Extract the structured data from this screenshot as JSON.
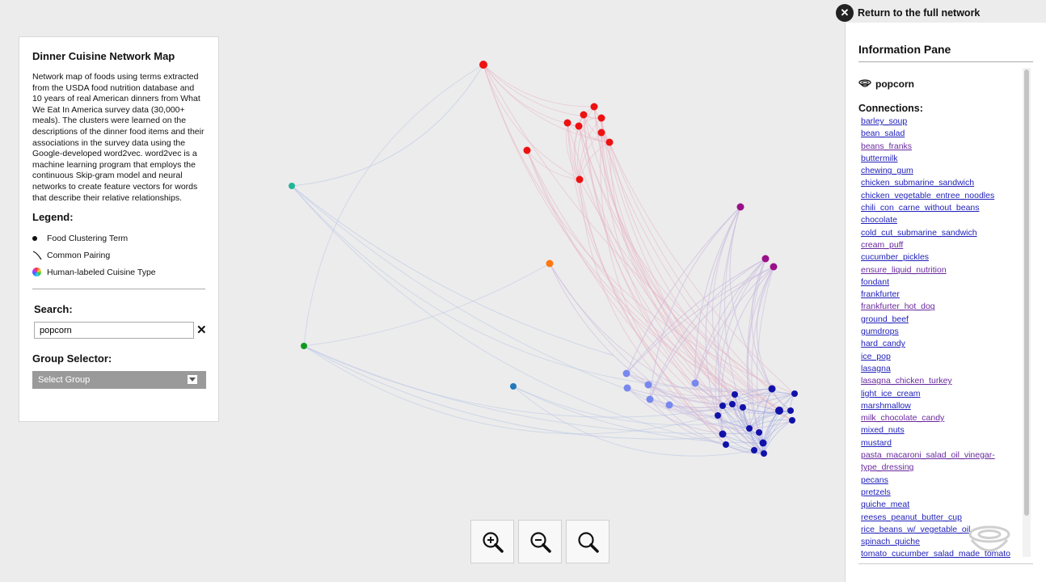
{
  "left_panel": {
    "title": "Dinner Cuisine Network Map",
    "description": "Network map of foods using terms extracted from the USDA food nutrition database and 10 years of real American dinners from What We Eat In America survey data (30,000+ meals). The clusters were learned on the descriptions of the dinner food items and their associations in the survey data using the Google-developed word2vec. word2vec is a machine learning program that employs the continuous Skip-gram model and neural networks to create feature vectors for words that describe their relative relationships.",
    "legend_title": "Legend:",
    "legend": [
      {
        "icon": "dot-icon",
        "label": "Food Clustering Term"
      },
      {
        "icon": "arc-icon",
        "label": "Common Pairing"
      },
      {
        "icon": "color-wheel-icon",
        "label": "Human-labeled Cuisine Type"
      }
    ],
    "search_label": "Search:",
    "search_value": "popcorn",
    "clear_symbol": "✕",
    "group_label": "Group Selector:",
    "group_value": "Select Group"
  },
  "return_button": {
    "symbol": "✕",
    "label": "Return to the full network"
  },
  "info_pane": {
    "title": "Information Pane",
    "node_name": "popcorn",
    "connections_title": "Connections:",
    "connections": [
      {
        "label": "barley_soup",
        "visited": false
      },
      {
        "label": "bean_salad",
        "visited": false
      },
      {
        "label": "beans_franks",
        "visited": true
      },
      {
        "label": "buttermilk",
        "visited": false
      },
      {
        "label": "chewing_gum",
        "visited": false
      },
      {
        "label": "chicken_submarine_sandwich",
        "visited": false
      },
      {
        "label": "chicken_vegetable_entree_noodles",
        "visited": false
      },
      {
        "label": "chili_con_carne_without_beans",
        "visited": false
      },
      {
        "label": "chocolate",
        "visited": false
      },
      {
        "label": "cold_cut_submarine_sandwich",
        "visited": false
      },
      {
        "label": "cream_puff",
        "visited": true
      },
      {
        "label": "cucumber_pickles",
        "visited": false
      },
      {
        "label": "ensure_liquid_nutrition",
        "visited": true
      },
      {
        "label": "fondant",
        "visited": false
      },
      {
        "label": "frankfurter",
        "visited": false
      },
      {
        "label": "frankfurter_hot_dog",
        "visited": true
      },
      {
        "label": "ground_beef",
        "visited": false
      },
      {
        "label": "gumdrops",
        "visited": false
      },
      {
        "label": "hard_candy",
        "visited": false
      },
      {
        "label": "ice_pop",
        "visited": false
      },
      {
        "label": "lasagna",
        "visited": false
      },
      {
        "label": "lasagna_chicken_turkey",
        "visited": true
      },
      {
        "label": "light_ice_cream",
        "visited": false
      },
      {
        "label": "marshmallow",
        "visited": false
      },
      {
        "label": "milk_chocolate_candy",
        "visited": true
      },
      {
        "label": "mixed_nuts",
        "visited": false
      },
      {
        "label": "mustard",
        "visited": false
      },
      {
        "label": "pasta_macaroni_salad_oil_vinegar-type_dressing",
        "visited": true
      },
      {
        "label": "pecans",
        "visited": false
      },
      {
        "label": "pretzels",
        "visited": false
      },
      {
        "label": "quiche_meat",
        "visited": false
      },
      {
        "label": "reeses_peanut_butter_cup",
        "visited": false
      },
      {
        "label": "rice_beans_w/_vegetable_oil",
        "visited": false
      },
      {
        "label": "spinach_quiche",
        "visited": false
      },
      {
        "label": "tomato_cucumber_salad_made_tomato",
        "visited": false
      }
    ]
  },
  "zoom_controls": [
    {
      "name": "zoom-in-button",
      "icon": "zoom-in-icon"
    },
    {
      "name": "zoom-out-button",
      "icon": "zoom-out-icon"
    },
    {
      "name": "zoom-reset-button",
      "icon": "zoom-reset-icon"
    }
  ],
  "network": {
    "cluster_colors": {
      "red": "#ee1111",
      "teal": "#22b597",
      "green": "#119922",
      "orange": "#ff7711",
      "blue": "#2277bb",
      "purple": "#991188",
      "lightblue": "#7788ee",
      "navy": "#1111aa"
    },
    "edge_colors": {
      "default": "#c9b8dd",
      "warm": "#e7b4c4",
      "cool": "#b9c6e6"
    }
  }
}
